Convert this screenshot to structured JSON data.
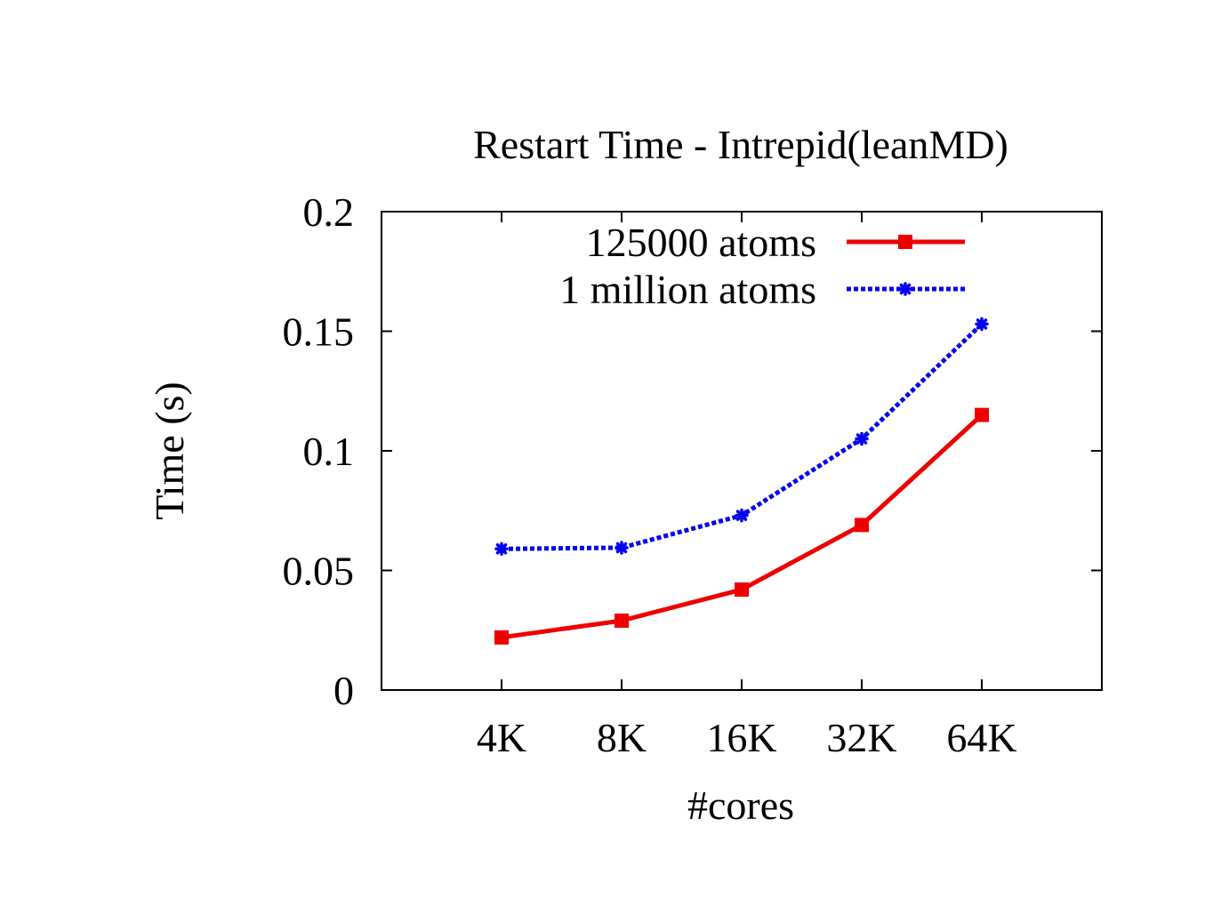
{
  "chart_data": {
    "type": "line",
    "title": "Restart Time - Intrepid(leanMD)",
    "xlabel": "#cores",
    "ylabel": "Time (s)",
    "categories": [
      "4K",
      "8K",
      "16K",
      "32K",
      "64K"
    ],
    "ylim": [
      0,
      0.2
    ],
    "yticks": [
      "0",
      "0.05",
      "0.1",
      "0.15",
      "0.2"
    ],
    "ytick_values": [
      0,
      0.05,
      0.1,
      0.15,
      0.2
    ],
    "grid": false,
    "legend_position": "top-right",
    "series": [
      {
        "name": "125000 atoms",
        "values": [
          0.022,
          0.029,
          0.042,
          0.069,
          0.115
        ],
        "color": "#ee0000",
        "style": "solid",
        "marker": "square"
      },
      {
        "name": "1 million atoms",
        "values": [
          0.059,
          0.0595,
          0.073,
          0.105,
          0.153
        ],
        "color": "#0000ee",
        "style": "dotted",
        "marker": "star"
      }
    ]
  }
}
